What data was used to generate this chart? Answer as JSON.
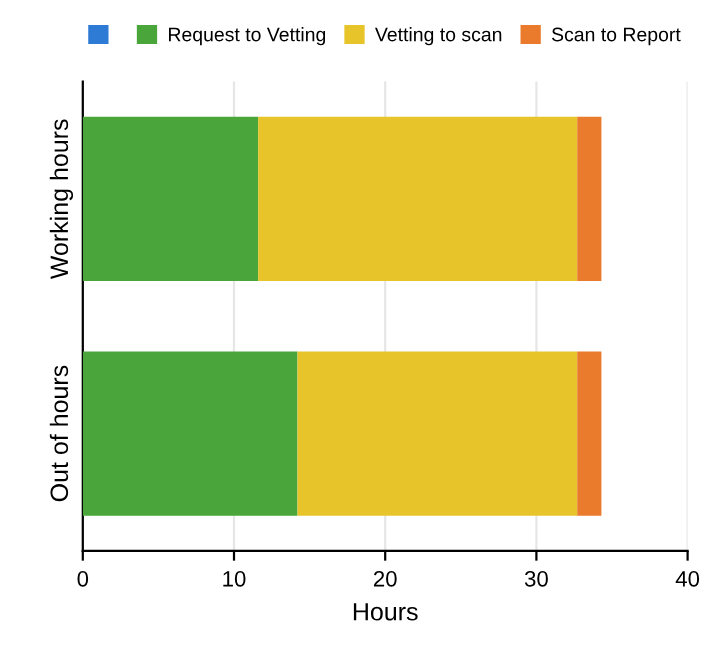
{
  "chart_data": {
    "type": "bar",
    "orientation": "horizontal",
    "stacked": true,
    "xlabel": "Hours",
    "categories": [
      "Working hours",
      "Out of hours"
    ],
    "series": [
      {
        "color": "#2e7bd6",
        "values": [
          0,
          0
        ]
      },
      {
        "name": "Request to Vetting",
        "color": "#4aa63a",
        "values": [
          11.6,
          14.2
        ]
      },
      {
        "name": "Vetting to scan",
        "color": "#e6c42a",
        "values": [
          21.1,
          18.5
        ]
      },
      {
        "name": "Scan to Report",
        "color": "#ea7a2c",
        "values": [
          1.6,
          1.6
        ]
      }
    ],
    "xlim": [
      0,
      40
    ],
    "xticks": [
      0,
      10,
      20,
      30,
      40
    ],
    "grid": "x",
    "legend": "top"
  }
}
